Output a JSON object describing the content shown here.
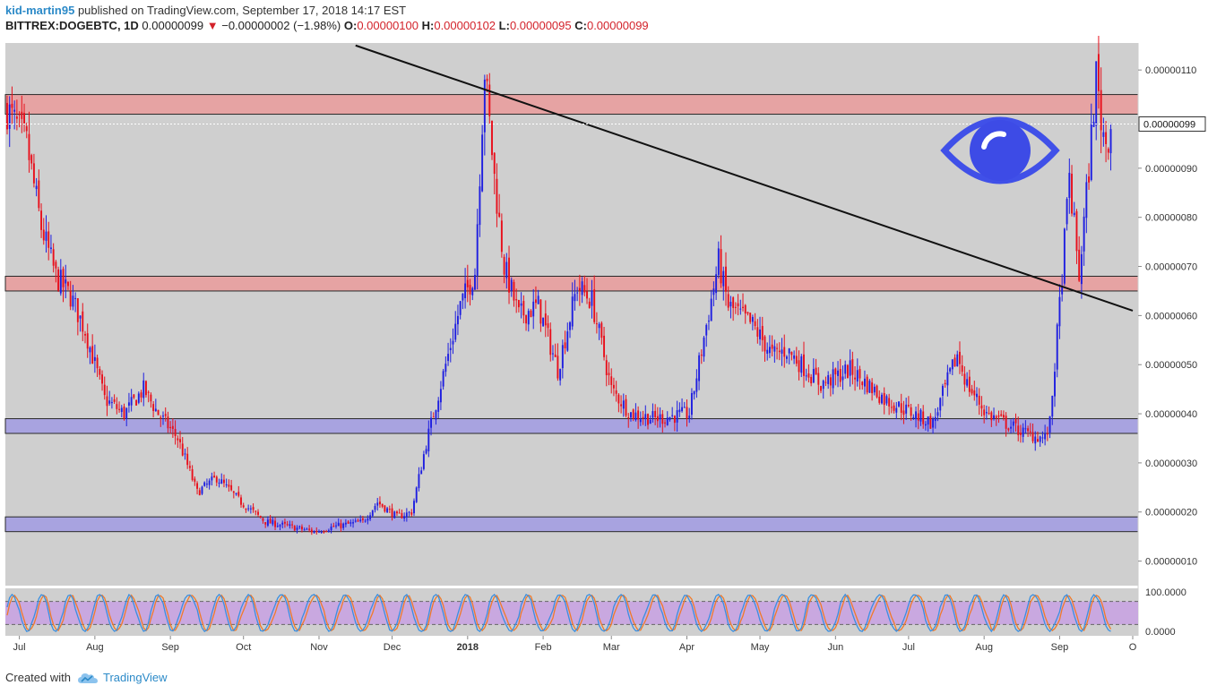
{
  "header": {
    "author": "kid-martin95",
    "published": "published on TradingView.com, September 17, 2018 14:17 EST",
    "symbol": "BITTREX:DOGEBTC, 1D",
    "last": "0.00000099",
    "change": "−0.00000002 (−1.98%)",
    "o_label": "O:",
    "o_val": "0.00000100",
    "h_label": "H:",
    "h_val": "0.00000102",
    "l_label": "L:",
    "l_val": "0.00000095",
    "c_label": "C:",
    "c_val": "0.00000099"
  },
  "footer": {
    "created": "Created with",
    "brand": "TradingView"
  },
  "colors": {
    "up": "#1f1fe0",
    "down": "#e8101c",
    "resistance": "#e6a3a3",
    "support": "#a8a3e0",
    "background": "#cfcfcf",
    "stoch_band": "#c9a8e0",
    "stoch_k": "#3a8fe0",
    "stoch_d": "#f07a2a"
  },
  "chart_data": {
    "type": "candlestick",
    "ylim": [
      5e-08,
      1.155e-06
    ],
    "y_ticks": [
      "0.00000110",
      "0.00000090",
      "0.00000080",
      "0.00000070",
      "0.00000060",
      "0.00000050",
      "0.00000040",
      "0.00000030",
      "0.00000020",
      "0.00000010"
    ],
    "y_tick_values": [
      1.1e-06,
      9e-07,
      8e-07,
      7e-07,
      6e-07,
      5e-07,
      4e-07,
      3e-07,
      2e-07,
      1e-07
    ],
    "last_price_label": "0.00000099",
    "last_price": 9.9e-07,
    "x_labels": [
      "Jul",
      "Aug",
      "Sep",
      "Oct",
      "Nov",
      "Dec",
      "2018",
      "Feb",
      "Mar",
      "Apr",
      "May",
      "Jun",
      "Jul",
      "Aug",
      "Sep",
      "O"
    ],
    "x_label_days": [
      5,
      36,
      67,
      97,
      128,
      158,
      189,
      220,
      248,
      279,
      309,
      340,
      370,
      401,
      432,
      462
    ],
    "total_days": 462,
    "close_anchors": [
      [
        0,
        1.02e-06
      ],
      [
        8,
        9.5e-07
      ],
      [
        14,
        7.8e-07
      ],
      [
        20,
        6.8e-07
      ],
      [
        26,
        6.4e-07
      ],
      [
        32,
        5.7e-07
      ],
      [
        40,
        4.3e-07
      ],
      [
        48,
        4e-07
      ],
      [
        56,
        4.5e-07
      ],
      [
        62,
        4e-07
      ],
      [
        70,
        3.5e-07
      ],
      [
        78,
        2.4e-07
      ],
      [
        86,
        2.7e-07
      ],
      [
        96,
        2.2e-07
      ],
      [
        106,
        1.8e-07
      ],
      [
        116,
        1.7e-07
      ],
      [
        126,
        1.6e-07
      ],
      [
        134,
        1.7e-07
      ],
      [
        146,
        1.8e-07
      ],
      [
        152,
        2.2e-07
      ],
      [
        160,
        1.9e-07
      ],
      [
        166,
        2e-07
      ],
      [
        172,
        3.4e-07
      ],
      [
        180,
        5e-07
      ],
      [
        186,
        6.2e-07
      ],
      [
        192,
        6.9e-07
      ],
      [
        196,
        1.1e-06
      ],
      [
        200,
        8.8e-07
      ],
      [
        204,
        7e-07
      ],
      [
        210,
        6e-07
      ],
      [
        218,
        6.2e-07
      ],
      [
        226,
        4.9e-07
      ],
      [
        234,
        6.6e-07
      ],
      [
        240,
        6.3e-07
      ],
      [
        248,
        4.5e-07
      ],
      [
        256,
        4e-07
      ],
      [
        266,
        3.9e-07
      ],
      [
        280,
        4e-07
      ],
      [
        292,
        7.1e-07
      ],
      [
        296,
        6.2e-07
      ],
      [
        306,
        5.8e-07
      ],
      [
        314,
        5.2e-07
      ],
      [
        320,
        5.3e-07
      ],
      [
        326,
        5e-07
      ],
      [
        334,
        4.6e-07
      ],
      [
        346,
        4.9e-07
      ],
      [
        360,
        4.3e-07
      ],
      [
        372,
        4e-07
      ],
      [
        380,
        3.8e-07
      ],
      [
        384,
        4.4e-07
      ],
      [
        390,
        5.2e-07
      ],
      [
        394,
        4.6e-07
      ],
      [
        402,
        4e-07
      ],
      [
        410,
        3.8e-07
      ],
      [
        418,
        3.6e-07
      ],
      [
        426,
        3.5e-07
      ],
      [
        428,
        3.8e-07
      ],
      [
        432,
        6.2e-07
      ],
      [
        436,
        8.8e-07
      ],
      [
        440,
        6.8e-07
      ],
      [
        444,
        9e-07
      ],
      [
        447,
        1.09e-06
      ],
      [
        449,
        1e-06
      ],
      [
        451,
        9.5e-07
      ],
      [
        453,
        9.9e-07
      ]
    ],
    "zones": [
      {
        "kind": "resistance",
        "low": 1.01e-06,
        "high": 1.05e-06
      },
      {
        "kind": "resistance",
        "low": 6.5e-07,
        "high": 6.8e-07
      },
      {
        "kind": "support",
        "low": 3.6e-07,
        "high": 3.9e-07
      },
      {
        "kind": "support",
        "low": 1.6e-07,
        "high": 1.9e-07
      }
    ],
    "trendline": {
      "start_day": 143,
      "start_price": 1.15e-06,
      "end_day": 462,
      "end_price": 6.1e-07
    },
    "stoch": {
      "ticks": [
        "100.0000",
        "0.0000"
      ],
      "upper": 80,
      "lower": 20
    }
  }
}
